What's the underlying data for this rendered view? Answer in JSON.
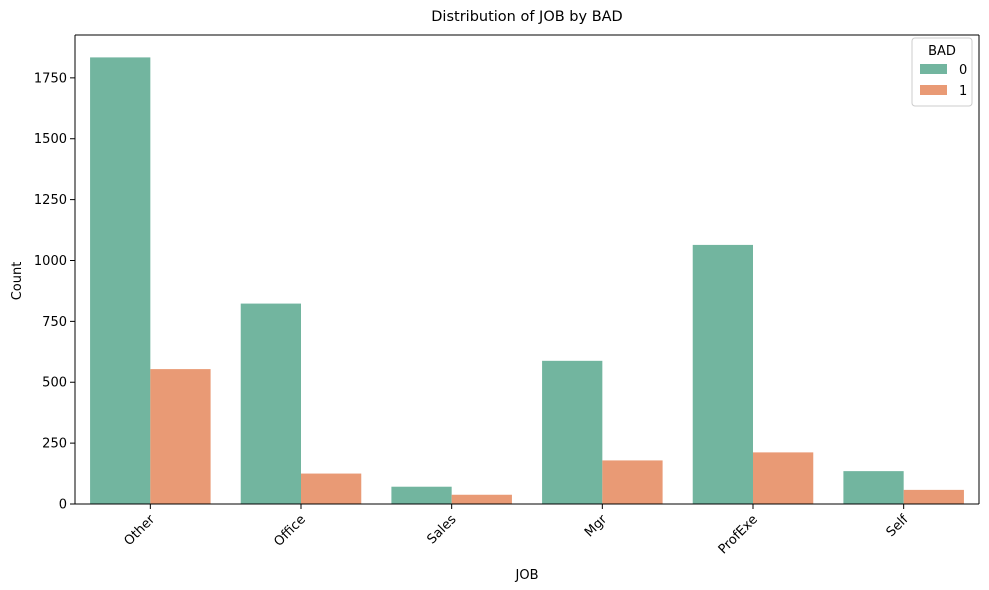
{
  "chart_data": {
    "type": "bar",
    "title": "Distribution of JOB by BAD",
    "xlabel": "JOB",
    "ylabel": "Count",
    "categories": [
      "Other",
      "Office",
      "Sales",
      "Mgr",
      "ProfExe",
      "Self"
    ],
    "series": [
      {
        "name": "0",
        "color": "#72b59f",
        "values": [
          1834,
          823,
          71,
          588,
          1064,
          135
        ]
      },
      {
        "name": "1",
        "color": "#e99a75",
        "values": [
          554,
          125,
          38,
          179,
          212,
          58
        ]
      }
    ],
    "yticks": [
      0,
      250,
      500,
      750,
      1000,
      1250,
      1500,
      1750
    ],
    "ylim": [
      0,
      1926
    ],
    "legend": {
      "title": "BAD",
      "placement": "top-right"
    },
    "grid": false,
    "xtick_rotation_deg": 45
  }
}
